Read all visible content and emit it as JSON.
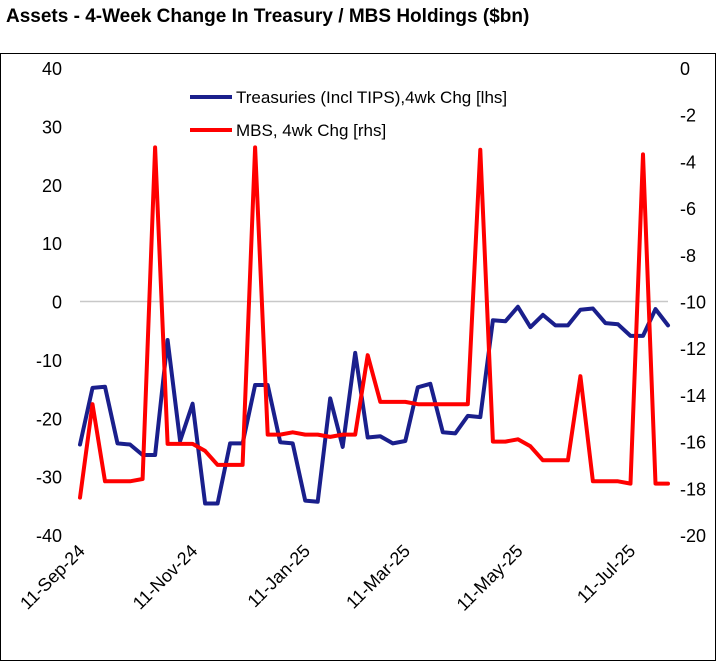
{
  "title": "Assets - 4-Week Change In Treasury / MBS Holdings ($bn)",
  "chart_data": {
    "type": "line",
    "title": "Assets - 4-Week Change In Treasury / MBS Holdings ($bn)",
    "legend_position": "top-center",
    "grid": false,
    "x_tick_labels": [
      "11-Sep-24",
      "11-Nov-24",
      "11-Jan-25",
      "11-Mar-25",
      "11-May-25",
      "11-Jul-25"
    ],
    "x_tick_indices": [
      0,
      9,
      18,
      26,
      35,
      44
    ],
    "left_axis": {
      "min": -40,
      "max": 40,
      "step": 10,
      "ticks": [
        40,
        30,
        20,
        10,
        0,
        -10,
        -20,
        -30,
        -40
      ]
    },
    "right_axis": {
      "min": -20,
      "max": 0,
      "step": 2,
      "ticks": [
        0,
        -2,
        -4,
        -6,
        -8,
        -10,
        -12,
        -14,
        -16,
        -18,
        -20
      ]
    },
    "series": [
      {
        "name": "Treasuries (Incl TIPS),4wk Chg [lhs]",
        "axis": "left",
        "color": "#1a1f8c",
        "values": [
          -24.5,
          -14.8,
          -14.6,
          -24.3,
          -24.5,
          -26.3,
          -26.3,
          -6.6,
          -23.9,
          -17.5,
          -34.6,
          -34.6,
          -24.3,
          -24.3,
          -14.3,
          -14.3,
          -24.1,
          -24.3,
          -34.1,
          -34.3,
          -16.6,
          -24.9,
          -8.8,
          -23.3,
          -23.1,
          -24.3,
          -23.9,
          -14.7,
          -14.1,
          -22.4,
          -22.6,
          -19.6,
          -19.8,
          -3.2,
          -3.4,
          -0.9,
          -4.4,
          -2.3,
          -4.1,
          -4.1,
          -1.4,
          -1.2,
          -3.7,
          -3.9,
          -5.9,
          -5.9,
          -1.3,
          -4.1
        ]
      },
      {
        "name": "MBS, 4wk Chg [rhs]",
        "axis": "right",
        "color": "#ff0000",
        "values": [
          -18.4,
          -14.4,
          -17.7,
          -17.7,
          -17.7,
          -17.6,
          -3.4,
          -16.1,
          -16.1,
          -16.1,
          -16.4,
          -17.0,
          -17.0,
          -17.0,
          -3.4,
          -15.7,
          -15.7,
          -15.6,
          -15.7,
          -15.7,
          -15.8,
          -15.7,
          -15.7,
          -12.3,
          -14.3,
          -14.3,
          -14.3,
          -14.4,
          -14.4,
          -14.4,
          -14.4,
          -14.4,
          -3.5,
          -16.0,
          -16.0,
          -15.9,
          -16.2,
          -16.8,
          -16.8,
          -16.8,
          -13.2,
          -17.7,
          -17.7,
          -17.7,
          -17.8,
          -3.7,
          -17.8,
          -17.8
        ]
      }
    ]
  }
}
